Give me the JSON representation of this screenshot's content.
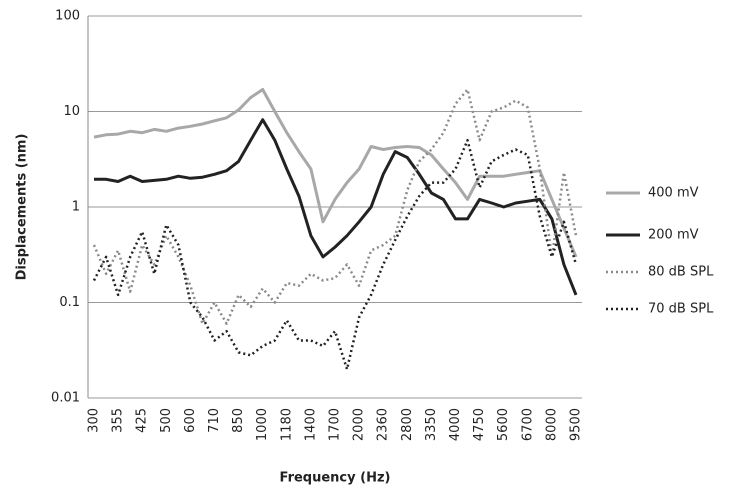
{
  "chart_data": {
    "type": "line",
    "x_label": "Frequency (Hz)",
    "y_label": "Displacements (nm)",
    "yscale": "log",
    "ylim": [
      0.01,
      100
    ],
    "yticks": [
      0.01,
      0.1,
      1,
      10,
      100
    ],
    "grid": true,
    "legend": "right",
    "categories": [
      "300",
      null,
      "355",
      null,
      "425",
      null,
      "500",
      null,
      "600",
      null,
      "710",
      null,
      "850",
      null,
      "1000",
      null,
      "1180",
      null,
      "1400",
      null,
      "1700",
      null,
      "2000",
      null,
      "2360",
      null,
      "2800",
      null,
      "3350",
      null,
      "4000",
      null,
      "4750",
      null,
      "5600",
      null,
      "6700",
      null,
      "8000",
      null,
      "9500"
    ],
    "series": [
      {
        "name": "400 mV",
        "color": "#a8a8a8",
        "linestyle": "solid",
        "values": [
          5.4,
          5.7,
          5.8,
          6.2,
          6,
          6.5,
          6.2,
          6.7,
          7,
          7.4,
          8,
          8.6,
          10.4,
          14,
          17,
          10,
          6,
          3.8,
          2.5,
          0.7,
          1.2,
          1.8,
          2.5,
          4.3,
          4.0,
          4.2,
          4.3,
          4.2,
          3.5,
          2.5,
          1.8,
          1.2,
          2.1,
          2.1,
          2.1,
          2.2,
          2.3,
          2.4,
          1.2,
          0.6,
          0.3
        ]
      },
      {
        "name": "200 mV",
        "color": "#222222",
        "linestyle": "solid",
        "values": [
          1.95,
          1.95,
          1.85,
          2.1,
          1.85,
          1.9,
          1.95,
          2.1,
          2.0,
          2.05,
          2.2,
          2.4,
          3.0,
          5.0,
          8.2,
          5,
          2.5,
          1.3,
          0.5,
          0.3,
          0.38,
          0.5,
          0.7,
          1.0,
          2.2,
          3.8,
          3.3,
          2.2,
          1.4,
          1.2,
          0.75,
          0.75,
          1.2,
          1.1,
          1.0,
          1.1,
          1.15,
          1.2,
          0.75,
          0.25,
          0.12
        ]
      },
      {
        "name": "80 dB SPL",
        "color": "#8a8a8a",
        "linestyle": "dotted",
        "values": [
          0.4,
          0.2,
          0.35,
          0.13,
          0.4,
          0.25,
          0.5,
          0.3,
          0.15,
          0.06,
          0.1,
          0.06,
          0.12,
          0.09,
          0.14,
          0.1,
          0.16,
          0.15,
          0.2,
          0.17,
          0.18,
          0.25,
          0.15,
          0.35,
          0.4,
          0.5,
          1.5,
          3,
          4,
          6,
          12,
          17,
          5,
          10,
          11,
          13,
          11,
          2.5,
          0.3,
          2.3,
          0.5
        ]
      },
      {
        "name": "70 dB SPL",
        "color": "#222222",
        "linestyle": "dotted",
        "values": [
          0.17,
          0.3,
          0.12,
          0.3,
          0.55,
          0.2,
          0.65,
          0.4,
          0.1,
          0.07,
          0.04,
          0.05,
          0.03,
          0.028,
          0.035,
          0.04,
          0.065,
          0.04,
          0.04,
          0.035,
          0.05,
          0.02,
          0.07,
          0.12,
          0.25,
          0.45,
          0.8,
          1.3,
          1.8,
          1.8,
          2.5,
          5,
          1.6,
          3,
          3.5,
          4,
          3.5,
          0.8,
          0.3,
          0.7,
          0.25
        ]
      }
    ]
  }
}
